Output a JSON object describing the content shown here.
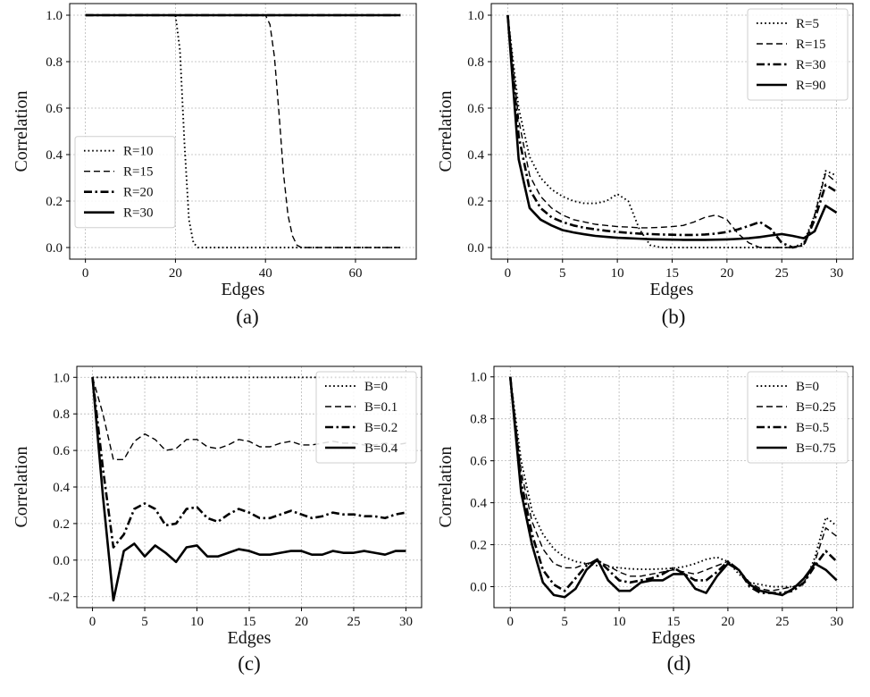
{
  "chart_data": [
    {
      "type": "line",
      "caption": "(a)",
      "xlabel": "Edges",
      "ylabel": "Correlation",
      "xlim": [
        -3.5,
        73.5
      ],
      "ylim": [
        -0.05,
        1.05
      ],
      "xticks": [
        0,
        20,
        40,
        60
      ],
      "yticks": [
        0.0,
        0.2,
        0.4,
        0.6,
        0.8,
        1.0
      ],
      "tick_decimals": 1,
      "grid": true,
      "legend_position": "center-left",
      "series": [
        {
          "name": "R=10",
          "style": "dotted",
          "x": [
            0,
            20,
            21,
            22,
            23,
            24,
            25,
            70
          ],
          "y": [
            1.0,
            1.0,
            0.85,
            0.45,
            0.12,
            0.02,
            0.0,
            0.0
          ]
        },
        {
          "name": "R=15",
          "style": "dashed",
          "x": [
            0,
            40,
            41,
            42,
            43,
            44,
            45,
            46,
            47,
            48,
            70
          ],
          "y": [
            1.0,
            1.0,
            0.96,
            0.82,
            0.58,
            0.32,
            0.14,
            0.05,
            0.01,
            0.0,
            0.0
          ]
        },
        {
          "name": "R=20",
          "style": "dashdot",
          "x": [
            0,
            70
          ],
          "y": [
            1.0,
            1.0
          ]
        },
        {
          "name": "R=30",
          "style": "solid",
          "x": [
            0,
            70
          ],
          "y": [
            1.0,
            1.0
          ]
        }
      ]
    },
    {
      "type": "line",
      "caption": "(b)",
      "xlabel": "Edges",
      "ylabel": "Correlation",
      "xlim": [
        -1.5,
        31.5
      ],
      "ylim": [
        -0.05,
        1.05
      ],
      "xticks": [
        0,
        5,
        10,
        15,
        20,
        25,
        30
      ],
      "yticks": [
        0.0,
        0.2,
        0.4,
        0.6,
        0.8,
        1.0
      ],
      "tick_decimals": 1,
      "grid": true,
      "legend_position": "top-right",
      "series": [
        {
          "name": "R=5",
          "style": "dotted",
          "x": [
            0,
            1,
            2,
            3,
            4,
            5,
            6,
            7,
            8,
            9,
            10,
            11,
            12,
            13,
            14,
            15,
            16,
            17,
            18,
            19,
            20,
            21,
            22,
            23,
            24,
            25,
            26,
            27,
            28,
            29,
            30
          ],
          "y": [
            1.0,
            0.6,
            0.39,
            0.3,
            0.25,
            0.22,
            0.2,
            0.19,
            0.19,
            0.2,
            0.23,
            0.2,
            0.08,
            0.01,
            0.0,
            0.0,
            0.0,
            0.0,
            0.0,
            0.0,
            0.0,
            0.0,
            0.0,
            0.0,
            0.0,
            0.0,
            0.0,
            0.02,
            0.14,
            0.33,
            0.31
          ]
        },
        {
          "name": "R=15",
          "style": "dashed",
          "x": [
            0,
            1,
            2,
            3,
            4,
            5,
            6,
            7,
            8,
            9,
            10,
            11,
            12,
            13,
            14,
            15,
            16,
            17,
            18,
            19,
            20,
            21,
            22,
            23,
            24,
            25,
            26,
            27,
            28,
            29,
            30
          ],
          "y": [
            1.0,
            0.55,
            0.31,
            0.22,
            0.17,
            0.14,
            0.12,
            0.11,
            0.1,
            0.095,
            0.09,
            0.088,
            0.085,
            0.085,
            0.087,
            0.09,
            0.095,
            0.11,
            0.13,
            0.14,
            0.12,
            0.06,
            0.02,
            0.0,
            0.0,
            0.0,
            0.0,
            0.01,
            0.14,
            0.32,
            0.28
          ]
        },
        {
          "name": "R=30",
          "style": "dashdot",
          "x": [
            0,
            1,
            2,
            3,
            4,
            5,
            6,
            7,
            8,
            9,
            10,
            11,
            12,
            13,
            14,
            15,
            16,
            17,
            18,
            19,
            20,
            21,
            22,
            23,
            24,
            25,
            26,
            27,
            28,
            29,
            30
          ],
          "y": [
            1.0,
            0.48,
            0.25,
            0.17,
            0.13,
            0.11,
            0.095,
            0.085,
            0.078,
            0.072,
            0.067,
            0.063,
            0.06,
            0.058,
            0.056,
            0.055,
            0.054,
            0.054,
            0.056,
            0.06,
            0.067,
            0.078,
            0.093,
            0.11,
            0.08,
            0.02,
            0.0,
            0.01,
            0.12,
            0.27,
            0.24
          ]
        },
        {
          "name": "R=90",
          "style": "solid",
          "x": [
            0,
            1,
            2,
            3,
            4,
            5,
            6,
            7,
            8,
            9,
            10,
            11,
            12,
            13,
            14,
            15,
            16,
            17,
            18,
            19,
            20,
            21,
            22,
            23,
            24,
            25,
            26,
            27,
            28,
            29,
            30
          ],
          "y": [
            1.0,
            0.38,
            0.17,
            0.12,
            0.095,
            0.075,
            0.065,
            0.057,
            0.05,
            0.046,
            0.042,
            0.04,
            0.038,
            0.036,
            0.035,
            0.034,
            0.033,
            0.033,
            0.033,
            0.034,
            0.035,
            0.037,
            0.04,
            0.045,
            0.052,
            0.058,
            0.05,
            0.04,
            0.07,
            0.18,
            0.15
          ]
        }
      ]
    },
    {
      "type": "line",
      "caption": "(c)",
      "xlabel": "Edges",
      "ylabel": "Correlation",
      "xlim": [
        -1.5,
        31.5
      ],
      "ylim": [
        -0.26,
        1.06
      ],
      "xticks": [
        0,
        5,
        10,
        15,
        20,
        25,
        30
      ],
      "yticks": [
        -0.2,
        0.0,
        0.2,
        0.4,
        0.6,
        0.8,
        1.0
      ],
      "tick_decimals": 1,
      "grid": true,
      "legend_position": "top-right",
      "series": [
        {
          "name": "B=0",
          "style": "dotted",
          "x": [
            0,
            30
          ],
          "y": [
            1.0,
            1.0
          ]
        },
        {
          "name": "B=0.1",
          "style": "dashed",
          "x": [
            0,
            1,
            2,
            3,
            4,
            5,
            6,
            7,
            8,
            9,
            10,
            11,
            12,
            13,
            14,
            15,
            16,
            17,
            18,
            19,
            20,
            21,
            22,
            23,
            24,
            25,
            26,
            27,
            28,
            29,
            30
          ],
          "y": [
            1.0,
            0.8,
            0.55,
            0.55,
            0.65,
            0.69,
            0.66,
            0.6,
            0.61,
            0.66,
            0.66,
            0.62,
            0.61,
            0.63,
            0.66,
            0.65,
            0.62,
            0.62,
            0.64,
            0.65,
            0.63,
            0.63,
            0.64,
            0.65,
            0.64,
            0.64,
            0.63,
            0.63,
            0.64,
            0.63,
            0.64
          ]
        },
        {
          "name": "B=0.2",
          "style": "dashdot",
          "x": [
            0,
            1,
            2,
            3,
            4,
            5,
            6,
            7,
            8,
            9,
            10,
            11,
            12,
            13,
            14,
            15,
            16,
            17,
            18,
            19,
            20,
            21,
            22,
            23,
            24,
            25,
            26,
            27,
            28,
            29,
            30
          ],
          "y": [
            1.0,
            0.5,
            0.07,
            0.14,
            0.28,
            0.31,
            0.28,
            0.19,
            0.2,
            0.28,
            0.29,
            0.23,
            0.21,
            0.25,
            0.28,
            0.26,
            0.23,
            0.23,
            0.25,
            0.27,
            0.25,
            0.23,
            0.24,
            0.26,
            0.25,
            0.25,
            0.24,
            0.24,
            0.23,
            0.25,
            0.26
          ]
        },
        {
          "name": "B=0.4",
          "style": "solid",
          "x": [
            0,
            1,
            2,
            3,
            4,
            5,
            6,
            7,
            8,
            9,
            10,
            11,
            12,
            13,
            14,
            15,
            16,
            17,
            18,
            19,
            20,
            21,
            22,
            23,
            24,
            25,
            26,
            27,
            28,
            29,
            30
          ],
          "y": [
            1.0,
            0.35,
            -0.22,
            0.05,
            0.09,
            0.02,
            0.08,
            0.04,
            -0.01,
            0.07,
            0.08,
            0.02,
            0.02,
            0.04,
            0.06,
            0.05,
            0.03,
            0.03,
            0.04,
            0.05,
            0.05,
            0.03,
            0.03,
            0.05,
            0.04,
            0.04,
            0.05,
            0.04,
            0.03,
            0.05,
            0.05
          ]
        }
      ]
    },
    {
      "type": "line",
      "caption": "(d)",
      "xlabel": "Edges",
      "ylabel": "Correlation",
      "xlim": [
        -1.5,
        31.5
      ],
      "ylim": [
        -0.1,
        1.05
      ],
      "xticks": [
        0,
        5,
        10,
        15,
        20,
        25,
        30
      ],
      "yticks": [
        0.0,
        0.2,
        0.4,
        0.6,
        0.8,
        1.0
      ],
      "tick_decimals": 1,
      "grid": true,
      "legend_position": "top-right",
      "series": [
        {
          "name": "B=0",
          "style": "dotted",
          "x": [
            0,
            1,
            2,
            3,
            4,
            5,
            6,
            7,
            8,
            9,
            10,
            11,
            12,
            13,
            14,
            15,
            16,
            17,
            18,
            19,
            20,
            21,
            22,
            23,
            24,
            25,
            26,
            27,
            28,
            29,
            30
          ],
          "y": [
            1.0,
            0.6,
            0.36,
            0.25,
            0.18,
            0.14,
            0.12,
            0.11,
            0.1,
            0.095,
            0.09,
            0.085,
            0.083,
            0.083,
            0.085,
            0.088,
            0.095,
            0.11,
            0.13,
            0.14,
            0.12,
            0.06,
            0.02,
            0.01,
            0.0,
            0.0,
            0.0,
            0.01,
            0.14,
            0.33,
            0.29
          ]
        },
        {
          "name": "B=0.25",
          "style": "dashed",
          "x": [
            0,
            1,
            2,
            3,
            4,
            5,
            6,
            7,
            8,
            9,
            10,
            11,
            12,
            13,
            14,
            15,
            16,
            17,
            18,
            19,
            20,
            21,
            22,
            23,
            24,
            25,
            26,
            27,
            28,
            29,
            30
          ],
          "y": [
            1.0,
            0.55,
            0.31,
            0.18,
            0.11,
            0.09,
            0.09,
            0.11,
            0.12,
            0.1,
            0.07,
            0.05,
            0.05,
            0.06,
            0.07,
            0.08,
            0.07,
            0.06,
            0.08,
            0.1,
            0.12,
            0.08,
            0.02,
            -0.01,
            -0.02,
            -0.01,
            0.0,
            0.02,
            0.12,
            0.28,
            0.24
          ]
        },
        {
          "name": "B=0.5",
          "style": "dashdot",
          "x": [
            0,
            1,
            2,
            3,
            4,
            5,
            6,
            7,
            8,
            9,
            10,
            11,
            12,
            13,
            14,
            15,
            16,
            17,
            18,
            19,
            20,
            21,
            22,
            23,
            24,
            25,
            26,
            27,
            28,
            29,
            30
          ],
          "y": [
            1.0,
            0.5,
            0.25,
            0.08,
            0.01,
            -0.02,
            0.04,
            0.1,
            0.13,
            0.08,
            0.03,
            0.02,
            0.03,
            0.04,
            0.06,
            0.09,
            0.06,
            0.03,
            0.03,
            0.07,
            0.12,
            0.08,
            0.0,
            -0.03,
            -0.03,
            -0.03,
            -0.02,
            0.02,
            0.1,
            0.17,
            0.12
          ]
        },
        {
          "name": "B=0.75",
          "style": "solid",
          "x": [
            0,
            1,
            2,
            3,
            4,
            5,
            6,
            7,
            8,
            9,
            10,
            11,
            12,
            13,
            14,
            15,
            16,
            17,
            18,
            19,
            20,
            21,
            22,
            23,
            24,
            25,
            26,
            27,
            28,
            29,
            30
          ],
          "y": [
            1.0,
            0.45,
            0.2,
            0.02,
            -0.04,
            -0.05,
            -0.01,
            0.08,
            0.13,
            0.03,
            -0.02,
            -0.02,
            0.02,
            0.03,
            0.03,
            0.06,
            0.06,
            -0.01,
            -0.03,
            0.05,
            0.11,
            0.08,
            0.01,
            -0.02,
            -0.03,
            -0.04,
            -0.01,
            0.04,
            0.11,
            0.08,
            0.03
          ]
        }
      ]
    }
  ]
}
